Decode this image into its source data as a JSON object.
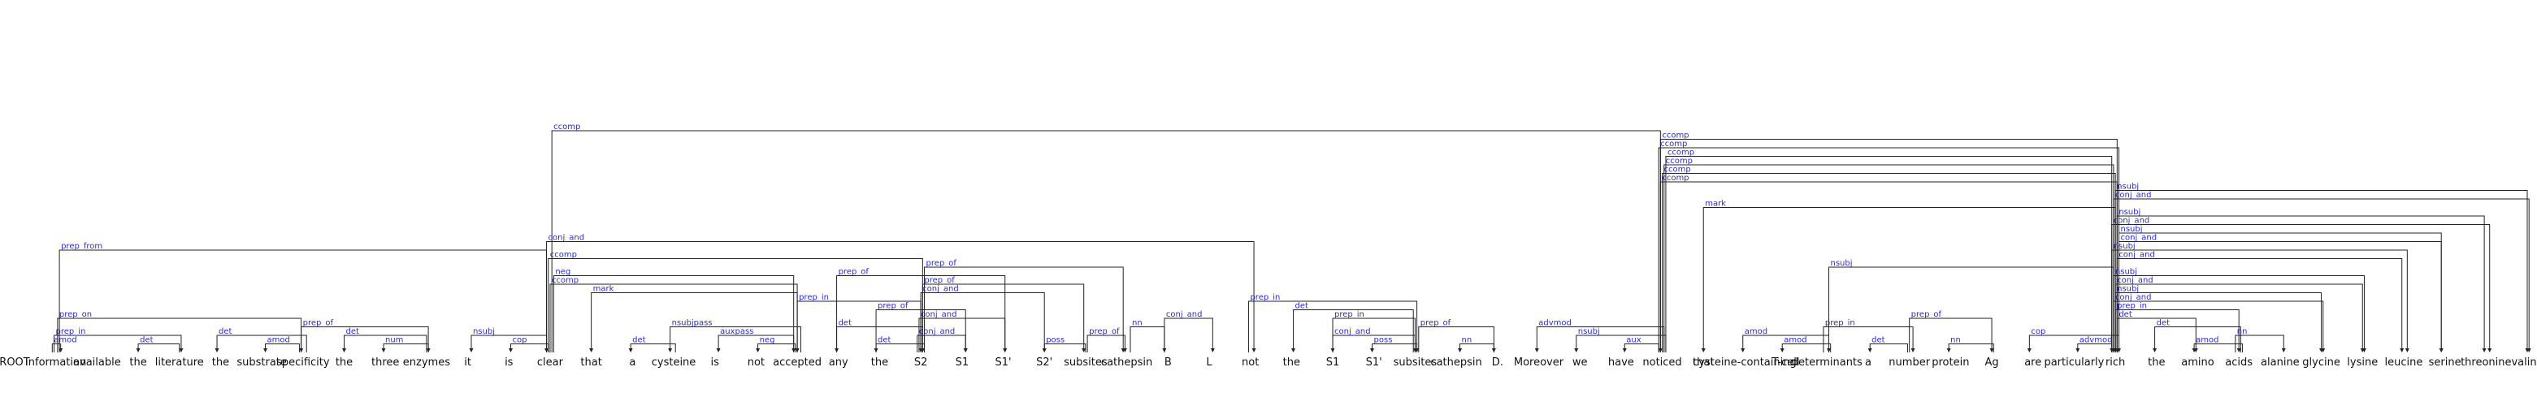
{
  "tokens": [
    "ROOT",
    "information",
    "available",
    "the",
    "literature",
    "the",
    "substrate",
    "specificity",
    "the",
    "three",
    "enzymes",
    "it",
    "is",
    "clear",
    "that",
    "a",
    "cysteine",
    "is",
    "not",
    "accepted",
    "any",
    "the",
    "S2",
    "S1",
    "S1'",
    "S2'",
    "subsites",
    "cathepsin",
    "B",
    "L",
    "not",
    "the",
    "S1",
    "S1'",
    "subsites",
    "cathepsin",
    "D.",
    "Moreover",
    "we",
    "have",
    "noticed",
    "that",
    "cysteine-containing",
    "T-cell",
    "determinants",
    "a",
    "number",
    "protein",
    "Ag",
    "are",
    "particularly",
    "rich",
    "the",
    "amino",
    "acids",
    "alanine",
    "glycine",
    "lysine",
    "leucine",
    "serine",
    "threonine",
    "valine"
  ],
  "arcs": [
    {
      "head": 1,
      "dep": 1,
      "label": "amod"
    },
    {
      "head": 1,
      "dep": 4,
      "label": "prep_in"
    },
    {
      "head": 4,
      "dep": 3,
      "label": "det"
    },
    {
      "head": 1,
      "dep": 7,
      "label": "prep_on"
    },
    {
      "head": 7,
      "dep": 5,
      "label": "det"
    },
    {
      "head": 7,
      "dep": 6,
      "label": "amod"
    },
    {
      "head": 7,
      "dep": 10,
      "label": "prep_of"
    },
    {
      "head": 10,
      "dep": 8,
      "label": "det"
    },
    {
      "head": 10,
      "dep": 9,
      "label": "num"
    },
    {
      "head": 1,
      "dep": 13,
      "label": "prep_from"
    },
    {
      "head": 13,
      "dep": 11,
      "label": "nsubj"
    },
    {
      "head": 13,
      "dep": 12,
      "label": "cop"
    },
    {
      "head": 13,
      "dep": 19,
      "label": "ccomp"
    },
    {
      "head": 13,
      "dep": 40,
      "label": "ccomp"
    },
    {
      "head": 13,
      "dep": 19,
      "label": "neg"
    },
    {
      "head": 13,
      "dep": 30,
      "label": "conj_and"
    },
    {
      "head": 13,
      "dep": 22,
      "label": "ccomp"
    },
    {
      "head": 19,
      "dep": 14,
      "label": "mark"
    },
    {
      "head": 16,
      "dep": 15,
      "label": "det"
    },
    {
      "head": 19,
      "dep": 16,
      "label": "nsubjpass"
    },
    {
      "head": 19,
      "dep": 17,
      "label": "auxpass"
    },
    {
      "head": 19,
      "dep": 18,
      "label": "neg"
    },
    {
      "head": 19,
      "dep": 22,
      "label": "prep_in"
    },
    {
      "head": 22,
      "dep": 20,
      "label": "det"
    },
    {
      "head": 22,
      "dep": 21,
      "label": "det"
    },
    {
      "head": 22,
      "dep": 23,
      "label": "conj_and"
    },
    {
      "head": 22,
      "dep": 24,
      "label": "conj_and"
    },
    {
      "head": 22,
      "dep": 25,
      "label": "conj_and"
    },
    {
      "head": 22,
      "dep": 26,
      "label": "prep_of"
    },
    {
      "head": 22,
      "dep": 27,
      "label": "prep_of"
    },
    {
      "head": 21,
      "dep": 23,
      "label": "prep_of"
    },
    {
      "head": 20,
      "dep": 24,
      "label": "prep_of"
    },
    {
      "head": 26,
      "dep": 25,
      "label": "poss"
    },
    {
      "head": 26,
      "dep": 27,
      "label": "prep_of"
    },
    {
      "head": 27,
      "dep": 28,
      "label": "nn"
    },
    {
      "head": 28,
      "dep": 29,
      "label": "conj_and"
    },
    {
      "head": 34,
      "dep": 31,
      "label": "det"
    },
    {
      "head": 34,
      "dep": 32,
      "label": "conj_and"
    },
    {
      "head": 34,
      "dep": 33,
      "label": "poss"
    },
    {
      "head": 34,
      "dep": 36,
      "label": "prep_of"
    },
    {
      "head": 36,
      "dep": 35,
      "label": "nn"
    },
    {
      "head": 30,
      "dep": 34,
      "label": "prep_in"
    },
    {
      "head": 32,
      "dep": 34,
      "label": "prep_in"
    },
    {
      "head": 40,
      "dep": 37,
      "label": "advmod"
    },
    {
      "head": 40,
      "dep": 38,
      "label": "nsubj"
    },
    {
      "head": 40,
      "dep": 39,
      "label": "aux"
    },
    {
      "head": 40,
      "dep": 51,
      "label": "ccomp"
    },
    {
      "head": 40,
      "dep": 51,
      "label": "ccomp"
    },
    {
      "head": 40,
      "dep": 51,
      "label": "ccomp"
    },
    {
      "head": 40,
      "dep": 51,
      "label": "ccomp"
    },
    {
      "head": 40,
      "dep": 51,
      "label": "ccomp"
    },
    {
      "head": 40,
      "dep": 51,
      "label": "ccomp"
    },
    {
      "head": 51,
      "dep": 41,
      "label": "mark"
    },
    {
      "head": 44,
      "dep": 42,
      "label": "amod"
    },
    {
      "head": 44,
      "dep": 43,
      "label": "amod"
    },
    {
      "head": 44,
      "dep": 46,
      "label": "prep_in"
    },
    {
      "head": 46,
      "dep": 45,
      "label": "det"
    },
    {
      "head": 46,
      "dep": 48,
      "label": "prep_of"
    },
    {
      "head": 48,
      "dep": 47,
      "label": "nn"
    },
    {
      "head": 51,
      "dep": 49,
      "label": "cop"
    },
    {
      "head": 51,
      "dep": 50,
      "label": "advmod"
    },
    {
      "head": 51,
      "dep": 44,
      "label": "nsubj"
    },
    {
      "head": 51,
      "dep": 54,
      "label": "prep_in"
    },
    {
      "head": 54,
      "dep": 52,
      "label": "det"
    },
    {
      "head": 54,
      "dep": 53,
      "label": "amod"
    },
    {
      "head": 54,
      "dep": 55,
      "label": "nn"
    },
    {
      "head": 51,
      "dep": 56,
      "label": "conj_and"
    },
    {
      "head": 51,
      "dep": 57,
      "label": "conj_and"
    },
    {
      "head": 51,
      "dep": 58,
      "label": "conj_and"
    },
    {
      "head": 51,
      "dep": 59,
      "label": "conj_and"
    },
    {
      "head": 51,
      "dep": 60,
      "label": "conj_and"
    },
    {
      "head": 51,
      "dep": 61,
      "label": "conj_and"
    },
    {
      "head": 51,
      "dep": 61,
      "label": "nsubj"
    },
    {
      "head": 51,
      "dep": 60,
      "label": "nsubj"
    },
    {
      "head": 51,
      "dep": 59,
      "label": "nsubj"
    },
    {
      "head": 51,
      "dep": 58,
      "label": "nsubj"
    },
    {
      "head": 51,
      "dep": 57,
      "label": "nsubj"
    },
    {
      "head": 51,
      "dep": 56,
      "label": "nsubj"
    },
    {
      "head": 51,
      "dep": 53,
      "label": "det"
    }
  ]
}
